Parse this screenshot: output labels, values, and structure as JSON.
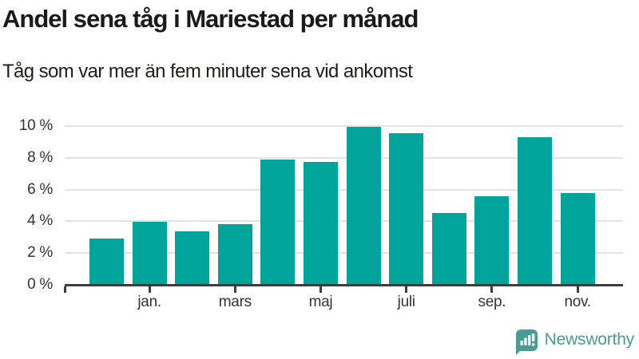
{
  "header": {
    "title": "Andel sena tåg i Mariestad per månad",
    "subtitle": "Tåg som var mer än fem minuter sena vid ankomst"
  },
  "chart_data": {
    "type": "bar",
    "title": "Andel sena tåg i Mariestad per månad",
    "subtitle": "Tåg som var mer än fem minuter sena vid ankomst",
    "values": [
      2.9,
      3.95,
      3.35,
      3.8,
      7.9,
      7.75,
      9.95,
      9.55,
      4.5,
      5.6,
      9.3,
      5.8
    ],
    "unit": "%",
    "bar_color": "#00a49a",
    "grid": true,
    "legend": "none",
    "x_axis": {
      "ticks": [
        {
          "bar_index": 1,
          "label": "jan."
        },
        {
          "bar_index": 3,
          "label": "mars"
        },
        {
          "bar_index": 5,
          "label": "maj"
        },
        {
          "bar_index": 7,
          "label": "juli"
        },
        {
          "bar_index": 9,
          "label": "sep."
        },
        {
          "bar_index": 11,
          "label": "nov."
        }
      ]
    },
    "y_axis": {
      "ticks": [
        {
          "value": 0,
          "label": "0 %"
        },
        {
          "value": 2,
          "label": "2 %"
        },
        {
          "value": 4,
          "label": "4 %"
        },
        {
          "value": 6,
          "label": "6 %"
        },
        {
          "value": 8,
          "label": "8 %"
        },
        {
          "value": 10,
          "label": "10 %"
        }
      ],
      "ylim": [
        0,
        10.5
      ]
    }
  },
  "footer": {
    "brand": "Newsworthy",
    "brand_color": "#4a9b94"
  }
}
